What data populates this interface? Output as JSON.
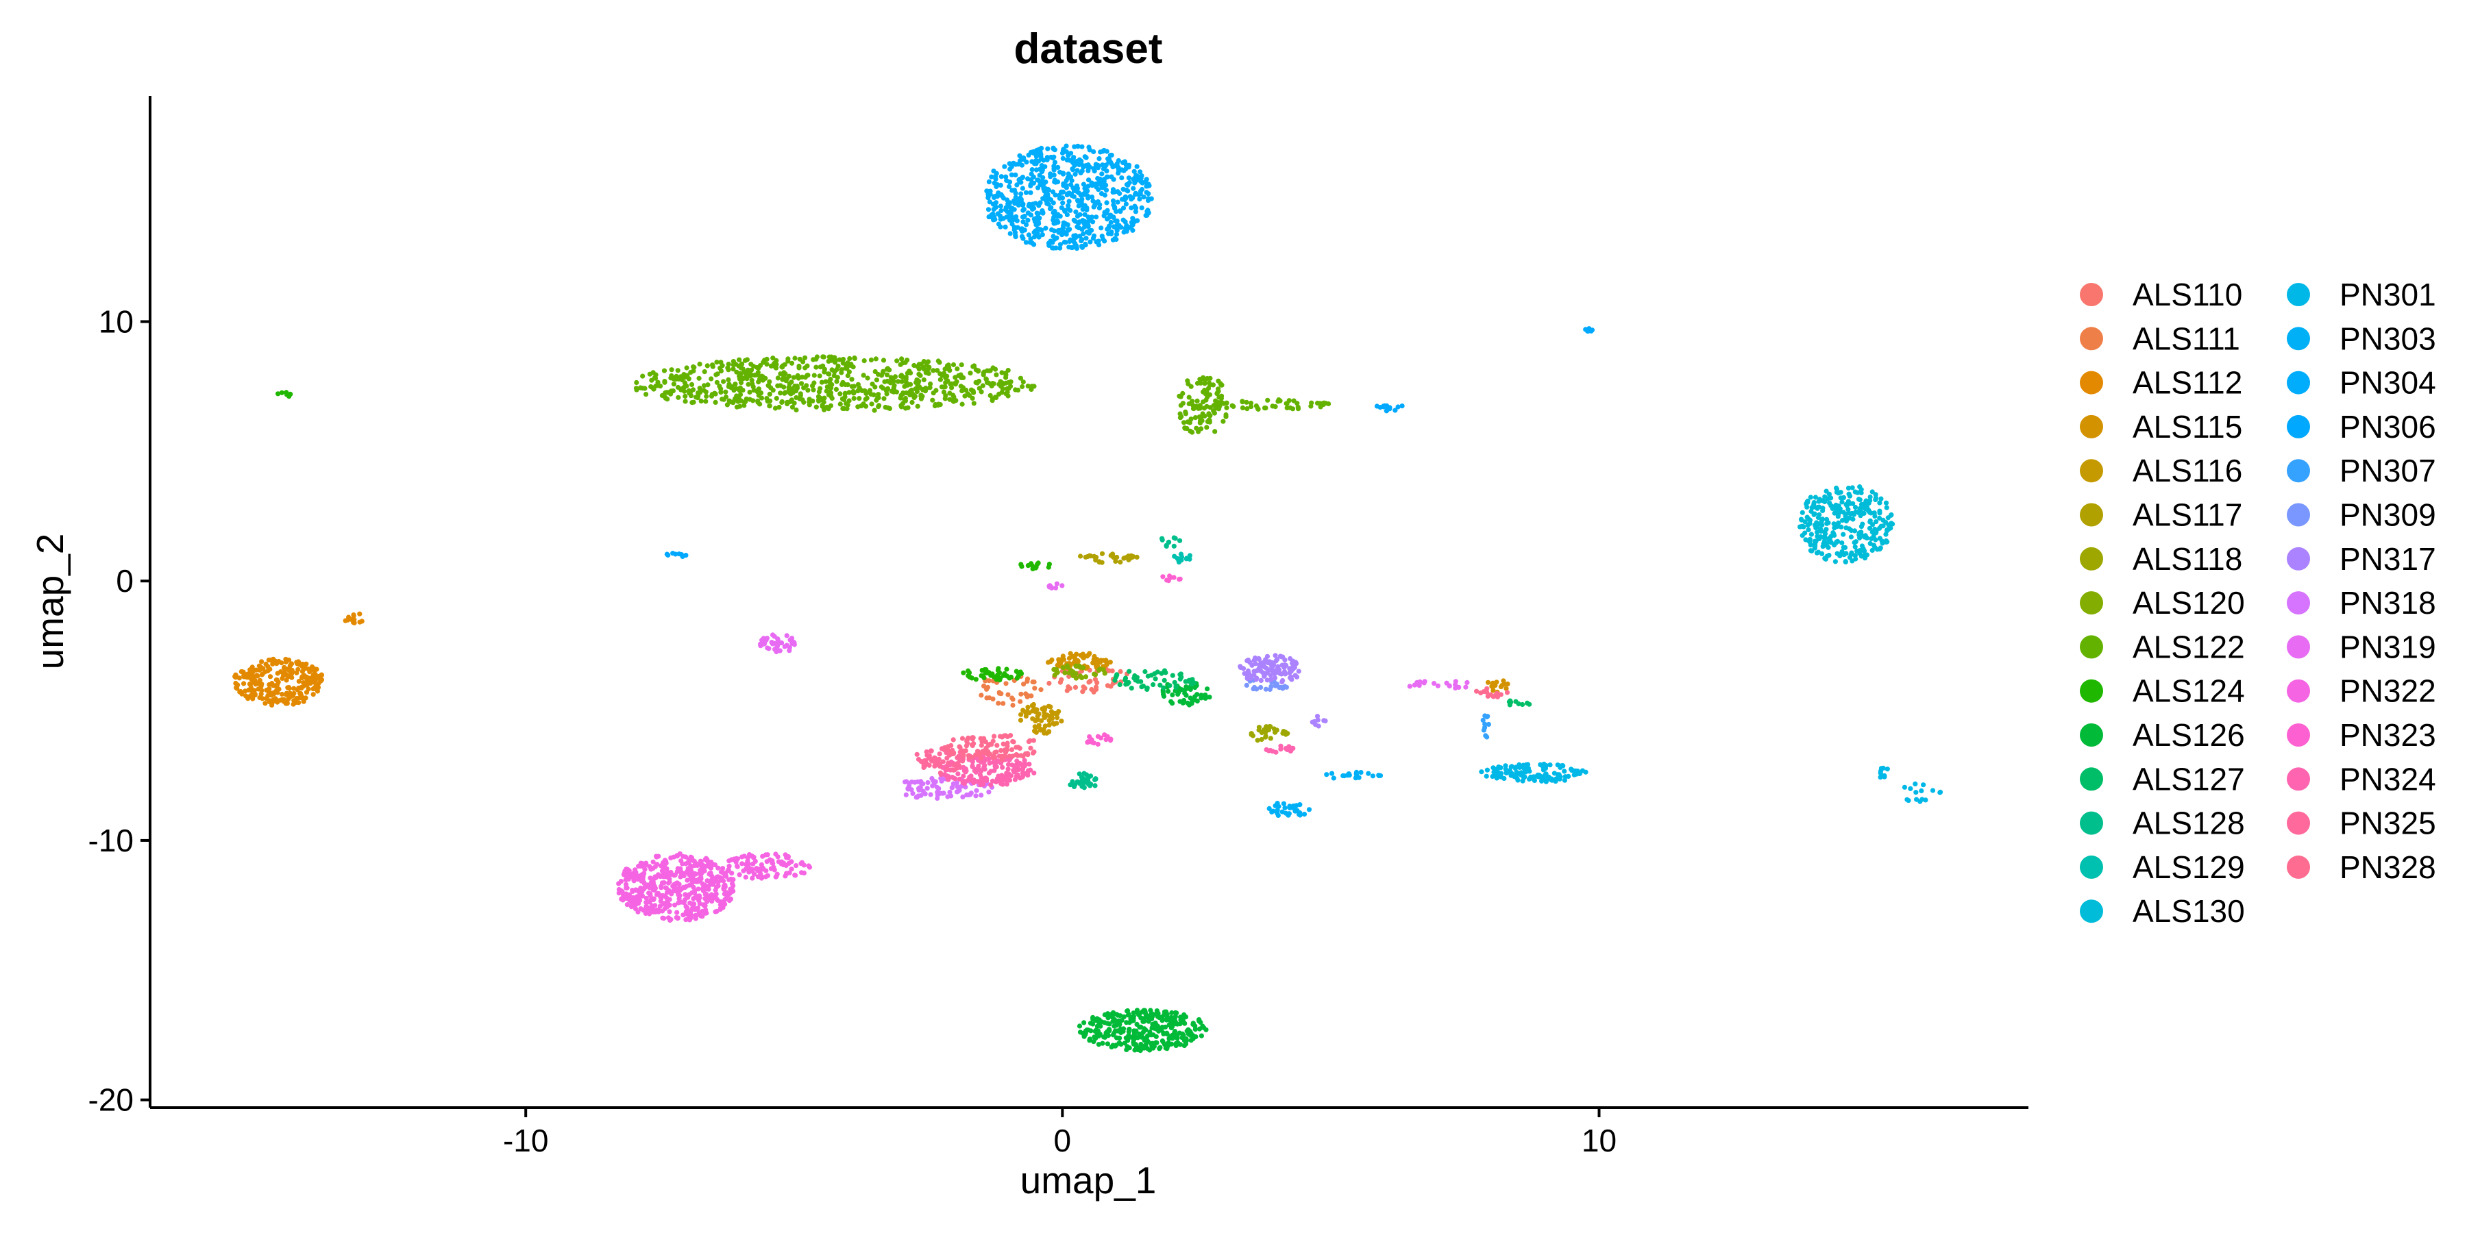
{
  "chart_data": {
    "type": "scatter",
    "title": "dataset",
    "xlabel": "umap_1",
    "ylabel": "umap_2",
    "xlim": [
      -17,
      18
    ],
    "ylim": [
      -20.3,
      18.7
    ],
    "x_ticks": [
      -10,
      0,
      10
    ],
    "x_tick_labels": [
      "-10",
      "0",
      "10"
    ],
    "y_ticks": [
      10,
      0,
      -10,
      -20
    ],
    "y_tick_labels": [
      "10",
      "0",
      "-10",
      "-20"
    ],
    "grid": false,
    "legend_position": "right",
    "legend_columns": 2,
    "series": [
      {
        "name": "ALS110",
        "color": "#F8766D",
        "clusters": [
          {
            "cx": 0.5,
            "cy": -3.8,
            "rx": 0.8,
            "ry": 0.5,
            "n": 40
          }
        ]
      },
      {
        "name": "ALS111",
        "color": "#EF7F49",
        "clusters": [
          {
            "cx": -1.0,
            "cy": -4.2,
            "rx": 0.6,
            "ry": 0.6,
            "n": 40
          }
        ]
      },
      {
        "name": "ALS112",
        "color": "#E38900",
        "clusters": [
          {
            "cx": -14.6,
            "cy": -3.9,
            "rx": 0.85,
            "ry": 0.9,
            "n": 260
          },
          {
            "cx": -13.2,
            "cy": -1.4,
            "rx": 0.2,
            "ry": 0.25,
            "n": 12
          }
        ]
      },
      {
        "name": "ALS115",
        "color": "#D39200",
        "clusters": [
          {
            "cx": 0.3,
            "cy": -3.1,
            "rx": 0.6,
            "ry": 0.35,
            "n": 70
          },
          {
            "cx": 8.1,
            "cy": -4.0,
            "rx": 0.2,
            "ry": 0.3,
            "n": 15
          }
        ]
      },
      {
        "name": "ALS116",
        "color": "#C49A00",
        "clusters": [
          {
            "cx": -0.4,
            "cy": -5.3,
            "rx": 0.4,
            "ry": 0.6,
            "n": 60
          }
        ]
      },
      {
        "name": "ALS117",
        "color": "#B0A000",
        "clusters": [
          {
            "cx": 0.9,
            "cy": 0.9,
            "rx": 0.6,
            "ry": 0.2,
            "n": 30
          }
        ]
      },
      {
        "name": "ALS118",
        "color": "#9DA700",
        "clusters": [
          {
            "cx": 3.8,
            "cy": -5.9,
            "rx": 0.4,
            "ry": 0.3,
            "n": 30
          }
        ]
      },
      {
        "name": "ALS120",
        "color": "#83AD00",
        "clusters": [
          {
            "cx": 0.3,
            "cy": -3.5,
            "rx": 0.5,
            "ry": 0.3,
            "n": 30
          }
        ]
      },
      {
        "name": "ALS122",
        "color": "#64B200",
        "clusters": [
          {
            "cx": -4.3,
            "cy": 7.6,
            "rx": 3.8,
            "ry": 1.05,
            "n": 700
          },
          {
            "cx": 2.6,
            "cy": 6.8,
            "rx": 0.5,
            "ry": 1.2,
            "n": 110
          },
          {
            "cx": 4.0,
            "cy": 6.8,
            "rx": 1.0,
            "ry": 0.2,
            "n": 40
          }
        ]
      },
      {
        "name": "ALS124",
        "color": "#1FB700",
        "clusters": [
          {
            "cx": -1.3,
            "cy": -3.6,
            "rx": 0.6,
            "ry": 0.25,
            "n": 40
          },
          {
            "cx": -0.5,
            "cy": 0.6,
            "rx": 0.3,
            "ry": 0.15,
            "n": 12
          },
          {
            "cx": -14.5,
            "cy": 7.2,
            "rx": 0.15,
            "ry": 0.1,
            "n": 6
          }
        ]
      },
      {
        "name": "ALS126",
        "color": "#00BA38",
        "clusters": [
          {
            "cx": 1.5,
            "cy": -17.3,
            "rx": 1.2,
            "ry": 0.8,
            "n": 320
          },
          {
            "cx": 2.3,
            "cy": -4.3,
            "rx": 0.5,
            "ry": 0.5,
            "n": 50
          }
        ]
      },
      {
        "name": "ALS127",
        "color": "#00BE67",
        "clusters": [
          {
            "cx": 1.7,
            "cy": -3.8,
            "rx": 0.8,
            "ry": 0.4,
            "n": 50
          },
          {
            "cx": 8.5,
            "cy": -4.7,
            "rx": 0.3,
            "ry": 0.1,
            "n": 10
          }
        ]
      },
      {
        "name": "ALS128",
        "color": "#00BF8C",
        "clusters": [
          {
            "cx": 0.4,
            "cy": -7.7,
            "rx": 0.3,
            "ry": 0.3,
            "n": 30
          },
          {
            "cx": 2.0,
            "cy": 1.5,
            "rx": 0.2,
            "ry": 0.2,
            "n": 10
          }
        ]
      },
      {
        "name": "ALS129",
        "color": "#00C0AF",
        "clusters": [
          {
            "cx": 2.2,
            "cy": 0.9,
            "rx": 0.2,
            "ry": 0.2,
            "n": 12
          }
        ]
      },
      {
        "name": "ALS130",
        "color": "#00BCD8",
        "clusters": [
          {
            "cx": 14.6,
            "cy": 2.2,
            "rx": 0.9,
            "ry": 1.5,
            "n": 300
          }
        ]
      },
      {
        "name": "PN301",
        "color": "#00B8E7",
        "clusters": [
          {
            "cx": 8.8,
            "cy": -7.4,
            "rx": 1.0,
            "ry": 0.35,
            "n": 130
          },
          {
            "cx": 16.0,
            "cy": -8.2,
            "rx": 0.4,
            "ry": 0.4,
            "n": 15
          },
          {
            "cx": 15.3,
            "cy": -7.4,
            "rx": 0.2,
            "ry": 0.2,
            "n": 8
          }
        ]
      },
      {
        "name": "PN303",
        "color": "#00B0F6",
        "clusters": [
          {
            "cx": 4.2,
            "cy": -8.8,
            "rx": 0.4,
            "ry": 0.3,
            "n": 30
          },
          {
            "cx": 5.5,
            "cy": -7.5,
            "rx": 0.6,
            "ry": 0.15,
            "n": 20
          }
        ]
      },
      {
        "name": "PN304",
        "color": "#00ACFC",
        "clusters": [
          {
            "cx": 0.1,
            "cy": 14.8,
            "rx": 1.6,
            "ry": 2.0,
            "n": 700
          }
        ]
      },
      {
        "name": "PN306",
        "color": "#00A9FF",
        "clusters": [
          {
            "cx": 6.1,
            "cy": 6.7,
            "rx": 0.25,
            "ry": 0.15,
            "n": 15
          },
          {
            "cx": -7.2,
            "cy": 1.0,
            "rx": 0.2,
            "ry": 0.1,
            "n": 8
          },
          {
            "cx": 9.8,
            "cy": 9.7,
            "rx": 0.1,
            "ry": 0.1,
            "n": 6
          }
        ]
      },
      {
        "name": "PN307",
        "color": "#35A2FF",
        "clusters": [
          {
            "cx": 7.9,
            "cy": -5.5,
            "rx": 0.1,
            "ry": 0.6,
            "n": 10
          }
        ]
      },
      {
        "name": "PN309",
        "color": "#7997FF",
        "clusters": [
          {
            "cx": 3.8,
            "cy": -4.0,
            "rx": 0.4,
            "ry": 0.3,
            "n": 20
          }
        ]
      },
      {
        "name": "PN317",
        "color": "#AB82FF",
        "clusters": [
          {
            "cx": 3.9,
            "cy": -3.4,
            "rx": 0.6,
            "ry": 0.55,
            "n": 110
          },
          {
            "cx": 4.8,
            "cy": -5.4,
            "rx": 0.2,
            "ry": 0.2,
            "n": 8
          }
        ]
      },
      {
        "name": "PN318",
        "color": "#D674FF",
        "clusters": [
          {
            "cx": -2.2,
            "cy": -8.0,
            "rx": 1.0,
            "ry": 0.4,
            "n": 80
          }
        ]
      },
      {
        "name": "PN319",
        "color": "#E76BF3",
        "clusters": [
          {
            "cx": -5.3,
            "cy": -2.4,
            "rx": 0.35,
            "ry": 0.35,
            "n": 40
          },
          {
            "cx": 7.0,
            "cy": -4.0,
            "rx": 0.7,
            "ry": 0.15,
            "n": 20
          },
          {
            "cx": -0.1,
            "cy": -0.2,
            "rx": 0.15,
            "ry": 0.15,
            "n": 8
          }
        ]
      },
      {
        "name": "PN322",
        "color": "#F564E3",
        "clusters": [
          {
            "cx": -7.2,
            "cy": -11.8,
            "rx": 1.1,
            "ry": 1.3,
            "n": 500
          },
          {
            "cx": -5.5,
            "cy": -11.0,
            "rx": 0.8,
            "ry": 0.5,
            "n": 100
          }
        ]
      },
      {
        "name": "PN323",
        "color": "#FD61D1",
        "clusters": [
          {
            "cx": 0.7,
            "cy": -6.1,
            "rx": 0.3,
            "ry": 0.2,
            "n": 15
          },
          {
            "cx": 2.0,
            "cy": 0.1,
            "rx": 0.2,
            "ry": 0.1,
            "n": 8
          }
        ]
      },
      {
        "name": "PN324",
        "color": "#FF64B0",
        "clusters": [
          {
            "cx": -1.4,
            "cy": -7.3,
            "rx": 0.9,
            "ry": 0.6,
            "n": 160
          },
          {
            "cx": 4.1,
            "cy": -6.5,
            "rx": 0.3,
            "ry": 0.15,
            "n": 15
          }
        ]
      },
      {
        "name": "PN325",
        "color": "#FF699C",
        "clusters": [
          {
            "cx": -2.3,
            "cy": -6.9,
            "rx": 0.5,
            "ry": 0.5,
            "n": 60
          }
        ]
      },
      {
        "name": "PN328",
        "color": "#FF6C91",
        "clusters": [
          {
            "cx": -1.3,
            "cy": -6.4,
            "rx": 0.9,
            "ry": 0.5,
            "n": 100
          },
          {
            "cx": 8.0,
            "cy": -4.3,
            "rx": 0.3,
            "ry": 0.2,
            "n": 15
          }
        ]
      }
    ]
  }
}
